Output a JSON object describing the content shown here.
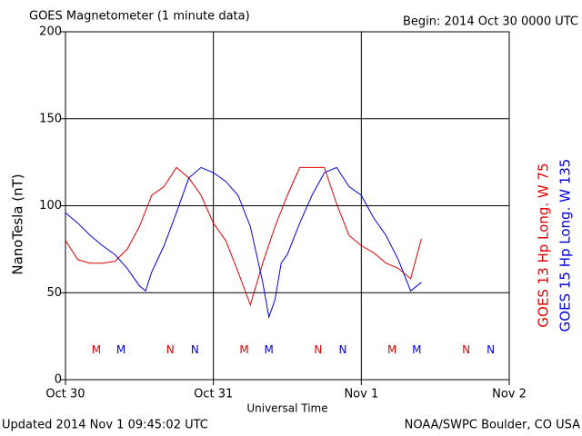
{
  "chart_data": {
    "type": "line",
    "title": "GOES Magnetometer (1 minute data)",
    "subtitle": "Begin:  2014 Oct 30 0000 UTC",
    "ylabel": "NanoTesla (nT)",
    "xlabel": "Universal Time",
    "footer_left": "Updated 2014 Nov  1 09:45:02 UTC",
    "footer_right": "NOAA/SWPC Boulder, CO USA",
    "xlim": [
      0,
      72
    ],
    "xticks": [
      {
        "value": 0,
        "label": "Oct 30"
      },
      {
        "value": 24,
        "label": "Oct 31"
      },
      {
        "value": 48,
        "label": "Nov 1"
      },
      {
        "value": 72,
        "label": "Nov 2"
      }
    ],
    "ylim": [
      0,
      200
    ],
    "yticks": [
      0,
      50,
      100,
      150,
      200
    ],
    "grid": true,
    "series": [
      {
        "name": "GOES 13 Hp  Long. W 75",
        "color": "#e00000",
        "x": [
          0,
          2,
          4,
          6,
          8,
          10,
          12,
          14,
          16,
          18,
          20,
          22,
          24,
          26,
          28,
          30,
          32,
          34,
          36,
          38,
          40,
          42,
          44,
          46,
          48,
          50,
          52,
          54,
          56,
          57.75
        ],
        "values": [
          80,
          69,
          67,
          67,
          68,
          75,
          88,
          106,
          111,
          122,
          116,
          106,
          90,
          80,
          62,
          43,
          67,
          88,
          106,
          122,
          122,
          122,
          101,
          83,
          77,
          73,
          67,
          64,
          58,
          81
        ]
      },
      {
        "name": "GOES 15 Hp  Long. W 135",
        "color": "#0000e0",
        "x": [
          0,
          2,
          4,
          6,
          8,
          10,
          12,
          13,
          14,
          16,
          18,
          20,
          22,
          24,
          26,
          28,
          30,
          32,
          33,
          34,
          35,
          36,
          38,
          40,
          42,
          44,
          46,
          48,
          50,
          52,
          54,
          56,
          57.75
        ],
        "values": [
          96,
          90,
          83,
          77,
          72,
          64,
          54,
          51,
          62,
          77,
          96,
          116,
          122,
          119,
          114,
          106,
          88,
          56,
          36,
          46,
          67,
          72,
          90,
          106,
          119,
          122,
          111,
          106,
          93,
          83,
          69,
          51,
          56
        ]
      }
    ],
    "annotations": [
      {
        "text": "M",
        "x": 5,
        "y": 17,
        "color": "#e00000"
      },
      {
        "text": "M",
        "x": 9,
        "y": 17,
        "color": "#0000e0"
      },
      {
        "text": "N",
        "x": 17,
        "y": 17,
        "color": "#e00000"
      },
      {
        "text": "N",
        "x": 21,
        "y": 17,
        "color": "#0000e0"
      },
      {
        "text": "M",
        "x": 29,
        "y": 17,
        "color": "#e00000"
      },
      {
        "text": "M",
        "x": 33,
        "y": 17,
        "color": "#0000e0"
      },
      {
        "text": "N",
        "x": 41,
        "y": 17,
        "color": "#e00000"
      },
      {
        "text": "N",
        "x": 45,
        "y": 17,
        "color": "#0000e0"
      },
      {
        "text": "M",
        "x": 53,
        "y": 17,
        "color": "#e00000"
      },
      {
        "text": "M",
        "x": 57,
        "y": 17,
        "color": "#0000e0"
      },
      {
        "text": "N",
        "x": 65,
        "y": 17,
        "color": "#e00000"
      },
      {
        "text": "N",
        "x": 69,
        "y": 17,
        "color": "#0000e0"
      }
    ]
  }
}
